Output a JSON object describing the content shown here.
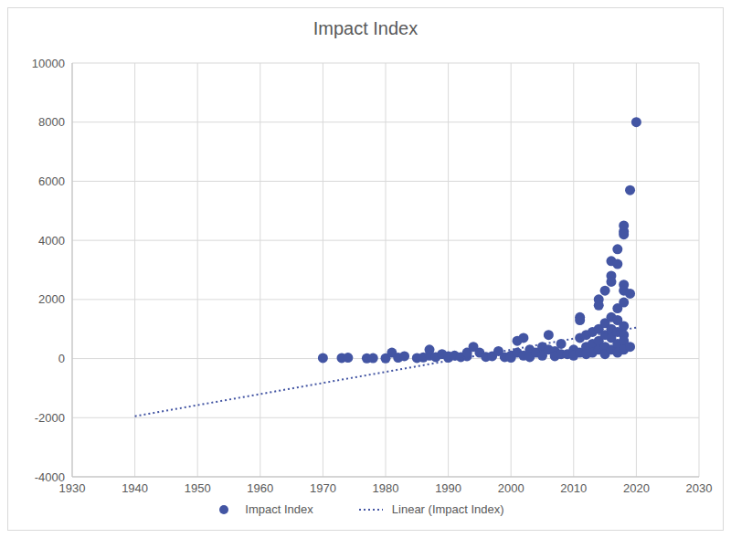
{
  "chart_data": {
    "type": "scatter",
    "title": "Impact Index",
    "xlim": [
      1930,
      2030
    ],
    "xticks": [
      1930,
      1940,
      1950,
      1960,
      1970,
      1980,
      1990,
      2000,
      2010,
      2020,
      2030
    ],
    "ylim": [
      -4000,
      10000
    ],
    "yticks": [
      -4000,
      -2000,
      0,
      2000,
      4000,
      6000,
      8000,
      10000
    ],
    "grid": true,
    "legend": "bottom",
    "series": [
      {
        "name": "Impact Index",
        "type": "scatter",
        "marker": "circle",
        "color": "#4355a3",
        "x": [
          1970,
          1973,
          1974,
          1977,
          1978,
          1980,
          1981,
          1982,
          1983,
          1985,
          1986,
          1987,
          1987,
          1988,
          1989,
          1990,
          1990,
          1991,
          1992,
          1993,
          1993,
          1994,
          1995,
          1996,
          1997,
          1998,
          1999,
          2000,
          2000,
          2001,
          2001,
          2002,
          2002,
          2003,
          2003,
          2004,
          2005,
          2005,
          2006,
          2006,
          2007,
          2007,
          2008,
          2008,
          2009,
          2010,
          2010,
          2011,
          2011,
          2011,
          2011,
          2012,
          2012,
          2012,
          2013,
          2013,
          2013,
          2014,
          2014,
          2014,
          2014,
          2014,
          2015,
          2015,
          2015,
          2015,
          2015,
          2016,
          2016,
          2016,
          2016,
          2016,
          2016,
          2016,
          2017,
          2017,
          2017,
          2017,
          2017,
          2017,
          2017,
          2018,
          2018,
          2018,
          2018,
          2018,
          2018,
          2018,
          2018,
          2018,
          2018,
          2019,
          2019,
          2019,
          2020
        ],
        "values": [
          20,
          20,
          30,
          10,
          15,
          10,
          200,
          30,
          80,
          20,
          40,
          300,
          100,
          50,
          150,
          30,
          80,
          100,
          50,
          80,
          200,
          400,
          200,
          60,
          80,
          250,
          50,
          100,
          30,
          600,
          200,
          700,
          100,
          300,
          50,
          200,
          400,
          100,
          800,
          300,
          250,
          80,
          500,
          150,
          150,
          300,
          100,
          1400,
          1300,
          700,
          200,
          800,
          400,
          150,
          900,
          500,
          200,
          2000,
          1800,
          1000,
          600,
          300,
          2300,
          1200,
          800,
          400,
          150,
          3300,
          2800,
          2600,
          1400,
          1000,
          700,
          300,
          3700,
          3200,
          1700,
          1300,
          900,
          500,
          200,
          4500,
          4300,
          4200,
          2500,
          2300,
          1900,
          1100,
          800,
          600,
          300,
          5700,
          2200,
          400,
          8000
        ]
      },
      {
        "name": "Linear (Impact Index)",
        "type": "line",
        "line_style": "dotted",
        "color": "#4355a3",
        "x": [
          1940,
          2020
        ],
        "values": [
          -1950,
          1050
        ]
      }
    ]
  }
}
